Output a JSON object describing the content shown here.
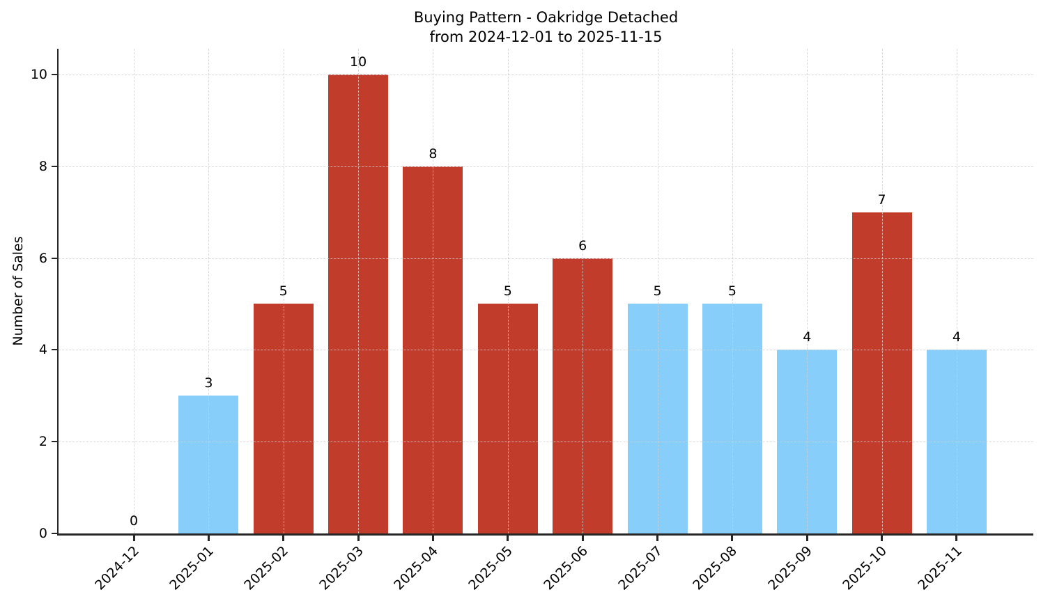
{
  "chart_data": {
    "type": "bar",
    "title": "Buying Pattern - Oakridge Detached",
    "subtitle": "from 2024-12-01 to 2025-11-15",
    "xlabel": "",
    "ylabel": "Number of Sales",
    "categories": [
      "2024-12",
      "2025-01",
      "2025-02",
      "2025-03",
      "2025-04",
      "2025-05",
      "2025-06",
      "2025-07",
      "2025-08",
      "2025-09",
      "2025-10",
      "2025-11"
    ],
    "values": [
      0,
      3,
      5,
      10,
      8,
      5,
      6,
      5,
      5,
      4,
      7,
      4
    ],
    "bar_colors": [
      "#87cefa",
      "#87cefa",
      "#c23c2c",
      "#c23c2c",
      "#c23c2c",
      "#c23c2c",
      "#c23c2c",
      "#87cefa",
      "#87cefa",
      "#87cefa",
      "#c23c2c",
      "#87cefa"
    ],
    "yticks": [
      0,
      2,
      4,
      6,
      8,
      10
    ],
    "ylim": [
      0,
      10.56
    ],
    "grid": true,
    "legend_position": "none",
    "colors": {
      "red_bar": "#c23c2c",
      "blue_bar": "#87cefa",
      "grid": "#d9d9d9",
      "axis": "#262626",
      "text": "#000000",
      "background": "#ffffff"
    }
  }
}
